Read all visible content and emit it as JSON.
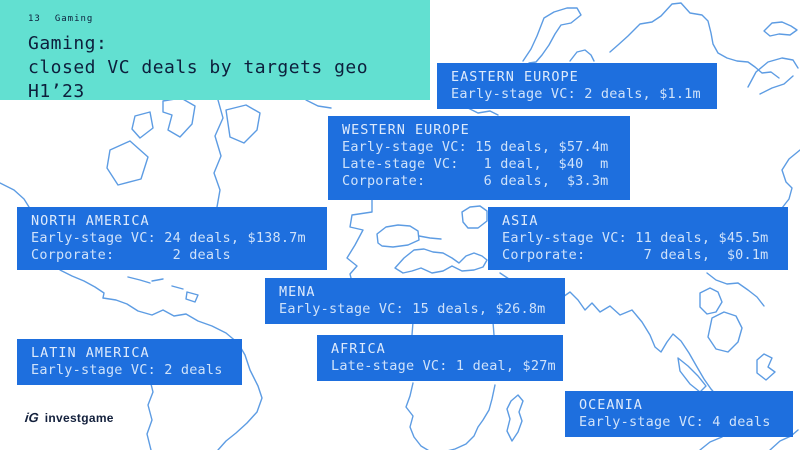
{
  "slide": {
    "page_number": "13",
    "section": "Gaming",
    "title_line1": "Gaming:",
    "title_line2": "closed VC deals by targets geo H1’23"
  },
  "footer": {
    "logo_mark": "iG",
    "logo_text": "investgame"
  },
  "colors": {
    "accent_teal": "#62e0d1",
    "box_blue": "#1e6fde",
    "map_line_blue": "#5d9ce3",
    "header_text": "#0d1f3c",
    "box_text": "#cfe2fa"
  },
  "regions": [
    {
      "id": "eastern-europe",
      "name": "EASTERN EUROPE",
      "lines": [
        "Early-stage VC: 2 deals, $1.1m"
      ]
    },
    {
      "id": "western-europe",
      "name": "WESTERN EUROPE",
      "lines": [
        "Early-stage VC: 15 deals, $57.4m",
        "Late-stage VC:   1 deal,  $40  m",
        "Corporate:       6 deals,  $3.3m"
      ]
    },
    {
      "id": "north-america",
      "name": "NORTH AMERICA",
      "lines": [
        "Early-stage VC: 24 deals, $138.7m",
        "Corporate:       2 deals"
      ]
    },
    {
      "id": "asia",
      "name": "ASIA",
      "lines": [
        "Early-stage VC: 11 deals, $45.5m",
        "Corporate:       7 deals,  $0.1m"
      ]
    },
    {
      "id": "mena",
      "name": "MENA",
      "lines": [
        "Early-stage VC: 15 deals, $26.8m"
      ]
    },
    {
      "id": "latin-america",
      "name": "LATIN AMERICA",
      "lines": [
        "Early-stage VC: 2 deals"
      ]
    },
    {
      "id": "africa",
      "name": "AFRICA",
      "lines": [
        "Late-stage VC: 1 deal, $27m"
      ]
    },
    {
      "id": "oceania",
      "name": "OCEANIA",
      "lines": [
        "Early-stage VC: 4 deals"
      ]
    }
  ],
  "chart_data": {
    "type": "table",
    "title": "Gaming: closed VC deals by targets geo H1’23",
    "columns": [
      "region",
      "deal_type",
      "deals",
      "amount_usd_m"
    ],
    "rows": [
      [
        "NORTH AMERICA",
        "Early-stage VC",
        24,
        138.7
      ],
      [
        "NORTH AMERICA",
        "Corporate",
        2,
        null
      ],
      [
        "LATIN AMERICA",
        "Early-stage VC",
        2,
        null
      ],
      [
        "WESTERN EUROPE",
        "Early-stage VC",
        15,
        57.4
      ],
      [
        "WESTERN EUROPE",
        "Late-stage VC",
        1,
        40
      ],
      [
        "WESTERN EUROPE",
        "Corporate",
        6,
        3.3
      ],
      [
        "EASTERN EUROPE",
        "Early-stage VC",
        2,
        1.1
      ],
      [
        "MENA",
        "Early-stage VC",
        15,
        26.8
      ],
      [
        "AFRICA",
        "Late-stage VC",
        1,
        27
      ],
      [
        "ASIA",
        "Early-stage VC",
        11,
        45.5
      ],
      [
        "ASIA",
        "Corporate",
        7,
        0.1
      ],
      [
        "OCEANIA",
        "Early-stage VC",
        4,
        null
      ]
    ]
  }
}
